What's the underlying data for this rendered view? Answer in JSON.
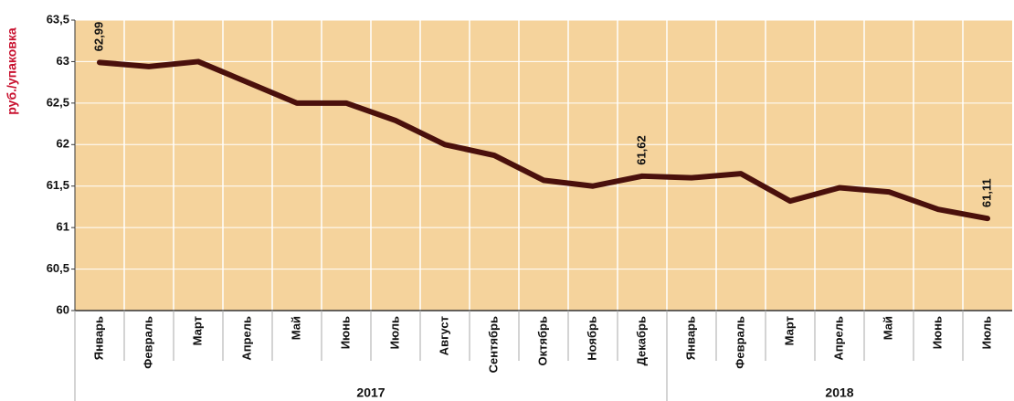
{
  "chart_data": {
    "type": "line",
    "y_label": "руб./упаковка",
    "categories": [
      "Январь",
      "Февраль",
      "Март",
      "Апрель",
      "Май",
      "Июнь",
      "Июль",
      "Август",
      "Сентябрь",
      "Октябрь",
      "Ноябрь",
      "Декабрь",
      "Январь",
      "Февраль",
      "Март",
      "Апрель",
      "Май",
      "Июнь",
      "Июль"
    ],
    "category_groups": [
      {
        "label": "2017",
        "span": 12
      },
      {
        "label": "2018",
        "span": 7
      }
    ],
    "values": [
      62.99,
      62.94,
      63.0,
      62.75,
      62.5,
      62.5,
      62.29,
      62.0,
      61.87,
      61.57,
      61.5,
      61.62,
      61.6,
      61.65,
      61.32,
      61.48,
      61.43,
      61.22,
      61.11
    ],
    "value_labels": [
      "62,99",
      null,
      null,
      null,
      null,
      null,
      null,
      null,
      null,
      null,
      null,
      "61,62",
      null,
      null,
      null,
      null,
      null,
      null,
      "61,11"
    ],
    "color": "#4a100c",
    "background": "#f5d39c",
    "ylim": [
      60,
      63.5
    ],
    "yticks": [
      60,
      {
        "value": 60.5,
        "label": "60,5"
      },
      61,
      {
        "value": 61.5,
        "label": "61,5"
      },
      62,
      {
        "value": 62.5,
        "label": "62,5"
      },
      63,
      {
        "value": 63.5,
        "label": "63,5"
      }
    ],
    "grid": true
  }
}
